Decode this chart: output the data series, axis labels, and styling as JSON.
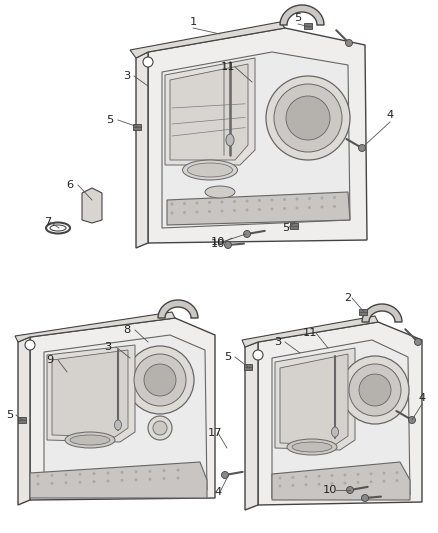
{
  "bg_color": "#ffffff",
  "lc": "#444444",
  "lc_thin": "#666666",
  "label_color": "#222222",
  "label_fontsize": 8.0,
  "panel_face": "#f0eeec",
  "panel_face2": "#e8e5e2",
  "inner_face": "#ebebeb",
  "grille_face": "#c8c5c2",
  "handle_face": "#e0ddd9"
}
